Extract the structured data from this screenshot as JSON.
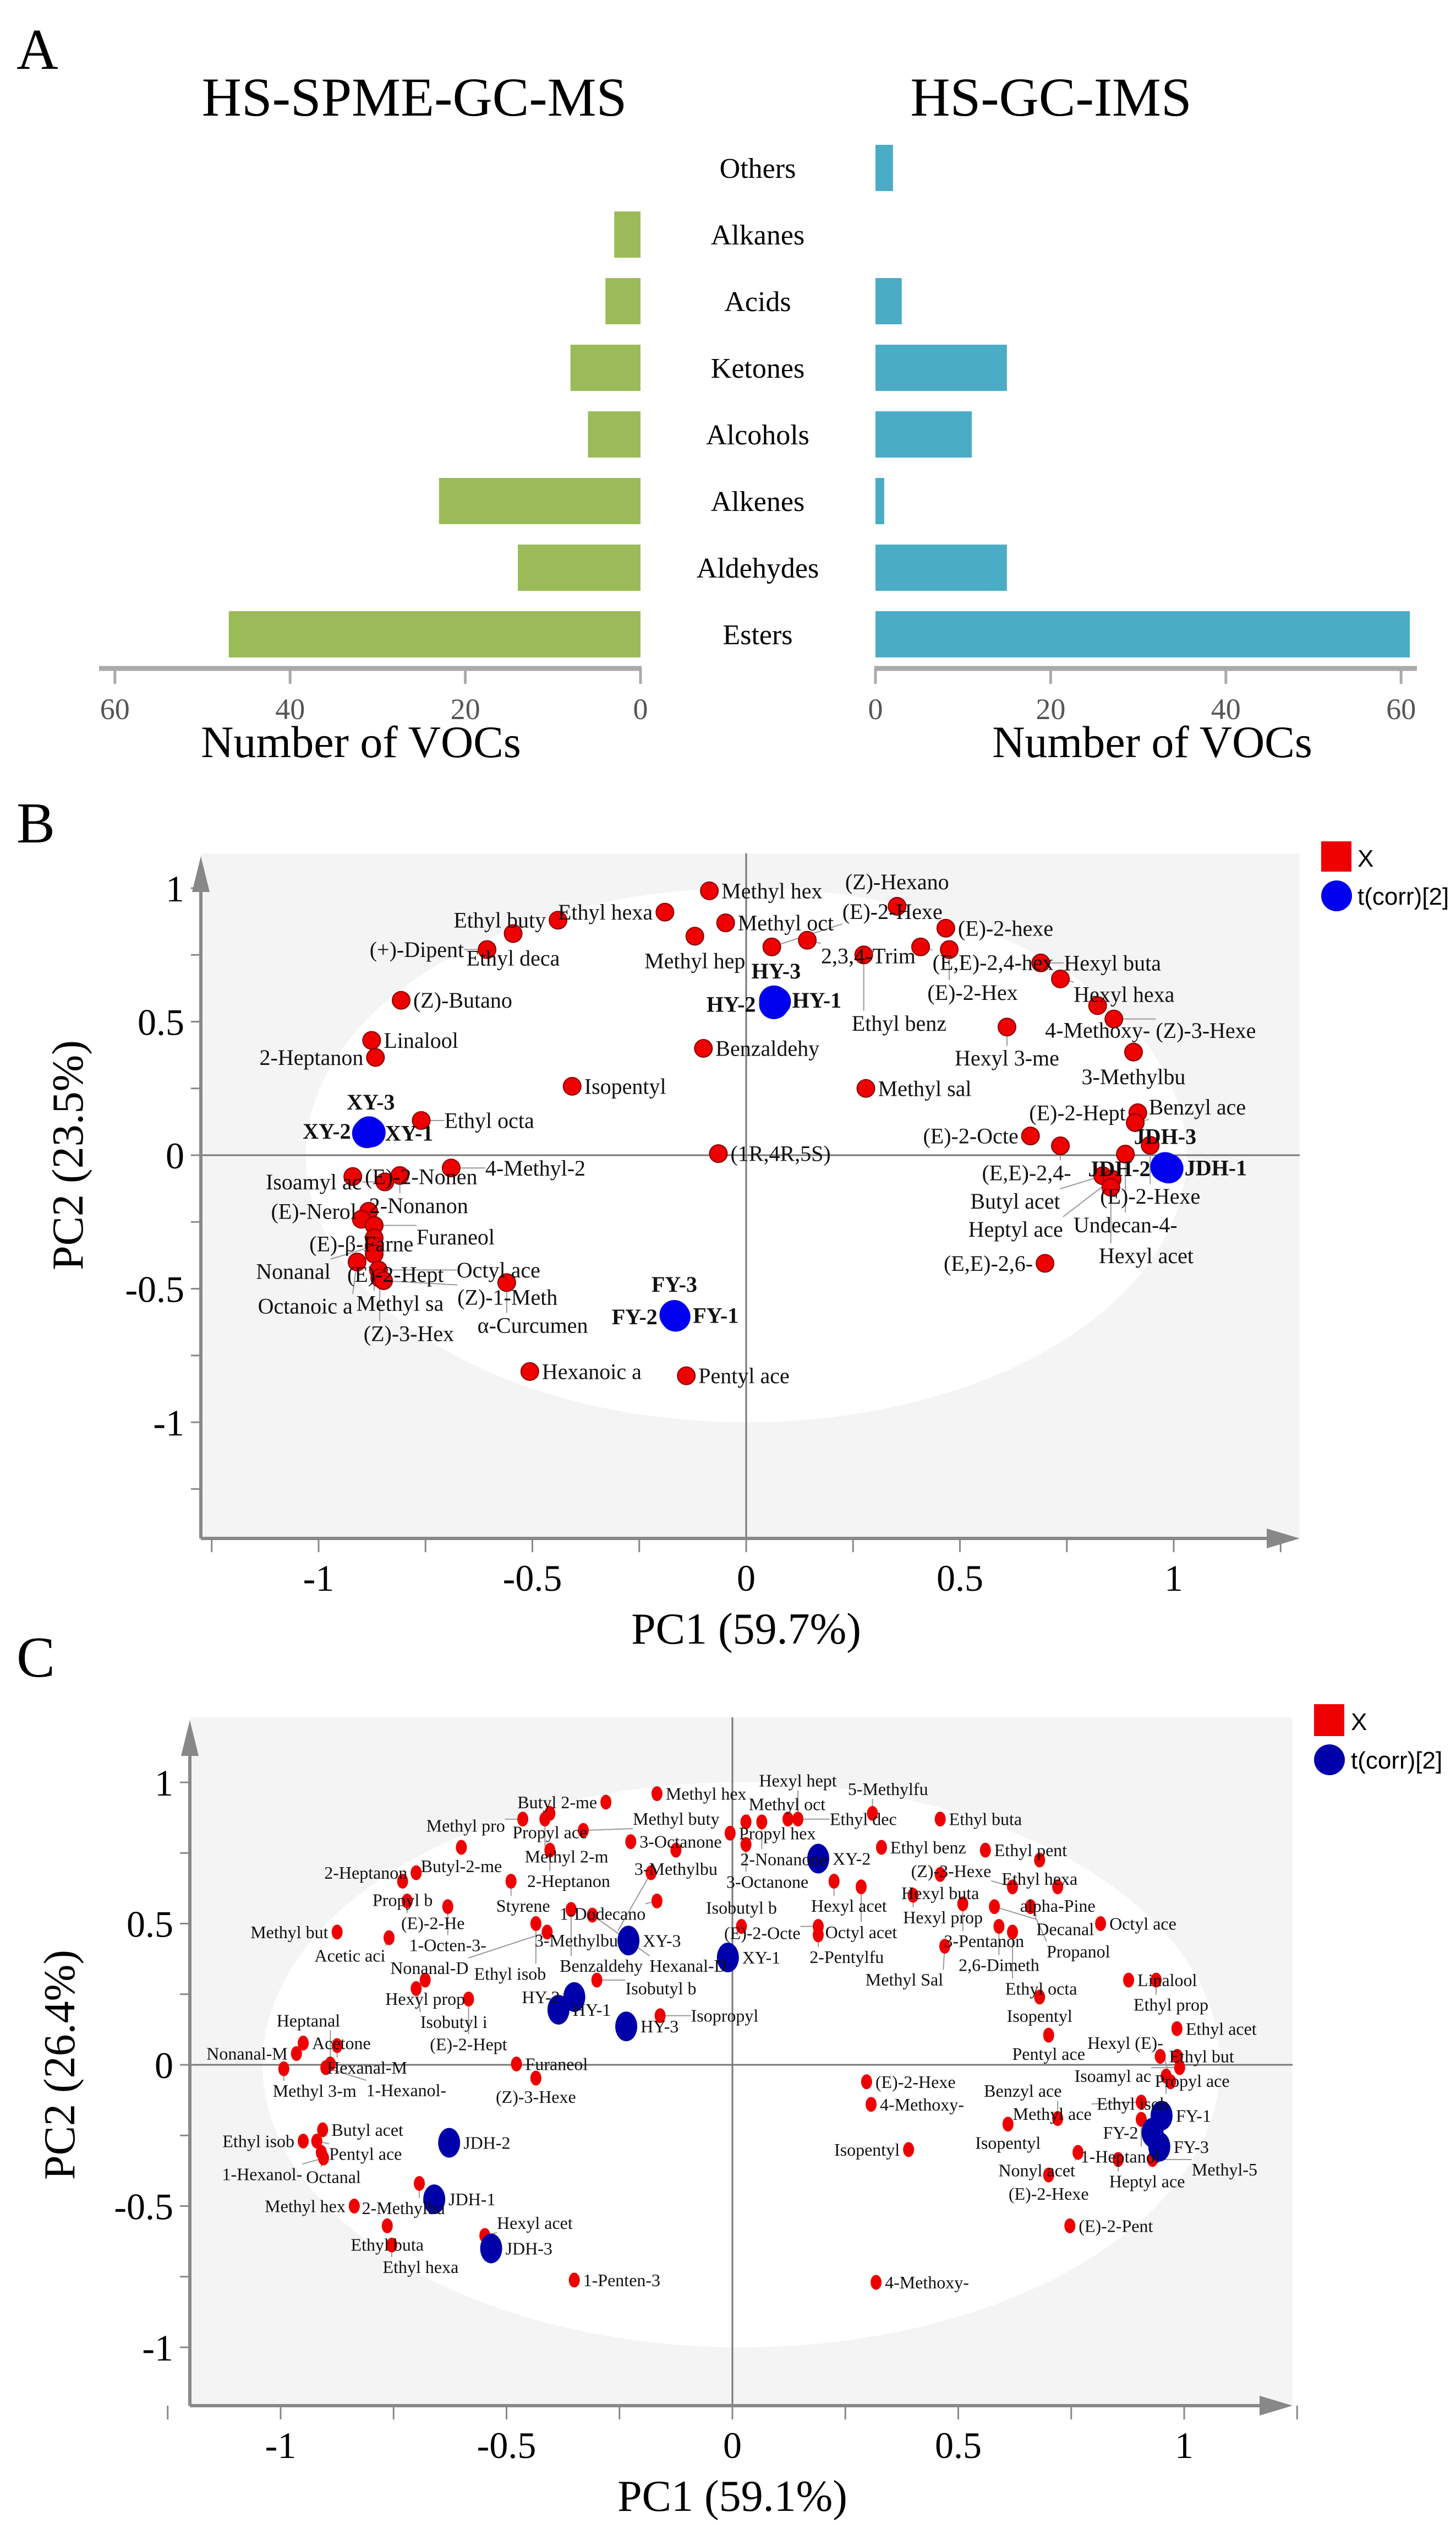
{
  "panel_letters": {
    "a": "A",
    "b": "B",
    "c": "C"
  },
  "chart_data": [
    {
      "type": "bar",
      "orientation": "horizontal-mirrored",
      "categories": [
        "Others",
        "Alkanes",
        "Acids",
        "Ketones",
        "Alcohols",
        "Alkenes",
        "Aldehydes",
        "Esters"
      ],
      "series": [
        {
          "name": "HS-SPME-GC-MS",
          "color": "#9bbb59",
          "values": [
            0,
            3,
            4,
            8,
            6,
            23,
            14,
            47
          ]
        },
        {
          "name": "HS-GC-IMS",
          "color": "#4bacc6",
          "values": [
            2,
            0,
            3,
            15,
            11,
            1,
            15,
            61
          ]
        }
      ],
      "xlabel": "Number of VOCs",
      "xlim": [
        0,
        60
      ],
      "xticks": [
        0,
        20,
        40,
        60
      ]
    },
    {
      "type": "scatter",
      "xlabel": "PC1 (59.7%)",
      "ylabel": "PC2 (23.5%)",
      "xlim": [
        -1.25,
        1.25
      ],
      "ylim": [
        -1.25,
        1.1
      ],
      "xticks": [
        "-1",
        "-0.5",
        "0",
        "0.5",
        "1"
      ],
      "yticks": [
        "1",
        "0.5",
        "0",
        "-0.5",
        "-1"
      ],
      "legend": {
        "position": "top-right",
        "entries": [
          {
            "label": "X",
            "color": "#ee0000",
            "shape": "square"
          },
          {
            "label": "t(corr)[2]",
            "color": "#0000ee",
            "shape": "circle"
          }
        ]
      },
      "variables": [
        [
          "Methyl hex",
          -0.086,
          0.99
        ],
        [
          "Ethyl hexa",
          -0.19,
          0.91
        ],
        [
          "Methyl oct",
          -0.048,
          0.87
        ],
        [
          "Ethyl buty",
          -0.44,
          0.88
        ],
        [
          "Ethyl deca",
          -0.545,
          0.83
        ],
        [
          "(+)-Dipent",
          -0.606,
          0.77
        ],
        [
          "Methyl hep",
          -0.12,
          0.82
        ],
        [
          "2,3,4-Trim",
          0.143,
          0.805
        ],
        [
          "(E)-2-Hexe",
          0.06,
          0.78
        ],
        [
          "(Z)-Hexano",
          0.353,
          0.932
        ],
        [
          "(E)-2-hexe",
          0.467,
          0.85
        ],
        [
          "(E,E)-2,4-hex",
          0.408,
          0.78
        ],
        [
          "(E)-2-Hex",
          0.475,
          0.77
        ],
        [
          "Ethyl benz",
          0.275,
          0.75
        ],
        [
          "Hexyl buta",
          0.689,
          0.72
        ],
        [
          "Hexyl hexa",
          0.735,
          0.66
        ],
        [
          "4-Methoxy-",
          0.822,
          0.56
        ],
        [
          "(Z)-3-Hexe",
          0.86,
          0.51
        ],
        [
          "Hexyl 3-me",
          0.61,
          0.48
        ],
        [
          "3-Methylbu",
          0.906,
          0.386
        ],
        [
          "(Z)-Butano",
          -0.807,
          0.58
        ],
        [
          "Linalool",
          -0.876,
          0.43
        ],
        [
          "2-Heptanon",
          -0.867,
          0.366
        ],
        [
          "Benzaldehy",
          -0.1,
          0.4
        ],
        [
          "Isopentyl",
          -0.407,
          0.258
        ],
        [
          "Methyl sal",
          0.28,
          0.25
        ],
        [
          "Ethyl octa",
          -0.76,
          0.13
        ],
        [
          "(1R,4R,5S)",
          -0.065,
          0.006
        ],
        [
          "(E)-2-Nonen",
          -0.92,
          -0.08
        ],
        [
          "2-Nonanon",
          -0.81,
          -0.076
        ],
        [
          "Isoamyl ac",
          -0.845,
          -0.1
        ],
        [
          "4-Methyl-2",
          -0.69,
          -0.048
        ],
        [
          "(E)-Nerol",
          -0.883,
          -0.21
        ],
        [
          "(E)-β-Farne",
          -0.9,
          -0.24
        ],
        [
          "Furaneol",
          -0.87,
          -0.263
        ],
        [
          "(E)-2-Hept",
          -0.87,
          -0.31
        ],
        [
          "Nonanal",
          -0.87,
          -0.34
        ],
        [
          "Methyl sa",
          -0.87,
          -0.37
        ],
        [
          "Octanoic a",
          -0.91,
          -0.4
        ],
        [
          "Octyl ace",
          -0.86,
          -0.43
        ],
        [
          "(Z)-3-Hex",
          -0.857,
          -0.46
        ],
        [
          "(Z)-1-Meth",
          -0.848,
          -0.47
        ],
        [
          "α-Curcumen",
          -0.56,
          -0.477
        ],
        [
          "Hexanoic a",
          -0.506,
          -0.81
        ],
        [
          "Pentyl ace",
          -0.14,
          -0.826
        ],
        [
          "(E)-2-Hept",
          0.916,
          0.159
        ],
        [
          "Benzyl ace",
          0.91,
          0.122
        ],
        [
          "(E)-2-Octe",
          0.665,
          0.072
        ],
        [
          "(E,E)-2,4-",
          0.735,
          0.035
        ],
        [
          "(E)-2-Hexe",
          0.945,
          0.037
        ],
        [
          "Undecan-4-",
          0.887,
          0.004
        ],
        [
          "Butyl acet",
          0.834,
          -0.077
        ],
        [
          "Heptyl ace",
          0.856,
          -0.09
        ],
        [
          "Hexyl acet",
          0.853,
          -0.12
        ],
        [
          "(E,E)-2,6-",
          0.699,
          -0.405
        ]
      ],
      "samples": [
        [
          "HY-1",
          0.065,
          0.58
        ],
        [
          "HY-2",
          0.065,
          0.565
        ],
        [
          "HY-3",
          0.07,
          0.575
        ],
        [
          "XY-1",
          -0.887,
          0.082
        ],
        [
          "XY-2",
          -0.882,
          0.09
        ],
        [
          "XY-3",
          -0.878,
          0.085
        ],
        [
          "FY-1",
          -0.167,
          -0.6
        ],
        [
          "FY-2",
          -0.165,
          -0.605
        ],
        [
          "FY-3",
          -0.168,
          -0.598
        ],
        [
          "JDH-1",
          0.983,
          -0.047
        ],
        [
          "JDH-2",
          0.988,
          -0.05
        ],
        [
          "JDH-3",
          0.98,
          -0.044
        ]
      ]
    },
    {
      "type": "scatter",
      "xlabel": "PC1 (59.1%)",
      "ylabel": "PC2 (26.4%)",
      "xlim": [
        -1.2,
        1.25
      ],
      "ylim": [
        -1.2,
        1.2
      ],
      "xticks": [
        "-1",
        "-0.5",
        "0",
        "0.5",
        "1"
      ],
      "yticks": [
        "1",
        "0.5",
        "0",
        "-0.5",
        "-1"
      ],
      "legend": {
        "position": "top-right",
        "entries": [
          {
            "label": "X",
            "color": "#ee0000",
            "shape": "square"
          },
          {
            "label": "t(corr)[2]",
            "color": "#0000aa",
            "shape": "circle"
          }
        ]
      },
      "variables": [
        [
          "Methyl hex",
          -0.167,
          0.96
        ],
        [
          "Butyl 2-me",
          -0.28,
          0.93
        ],
        [
          "Propyl ace",
          -0.404,
          0.89
        ],
        [
          "Methyl pro",
          -0.464,
          0.87
        ],
        [
          "Methyl 2-m",
          -0.415,
          0.87
        ],
        [
          "3-Octanone",
          -0.225,
          0.79
        ],
        [
          "Methyl buty",
          -0.33,
          0.83
        ],
        [
          "Butyl-2-me",
          -0.6,
          0.77
        ],
        [
          "2-Heptanon",
          -0.404,
          0.76
        ],
        [
          "3-Methylbu",
          -0.125,
          0.76
        ],
        [
          "Propyl hex",
          -0.005,
          0.82
        ],
        [
          "Methyl oct",
          0.03,
          0.86
        ],
        [
          "2-Nonanone",
          0.065,
          0.86
        ],
        [
          "Ethyl dec",
          0.123,
          0.87
        ],
        [
          "Hexyl hept",
          0.145,
          0.87
        ],
        [
          "3-Octanone",
          0.03,
          0.78
        ],
        [
          "5-Methylfu",
          0.31,
          0.89
        ],
        [
          "Ethyl buta",
          0.46,
          0.87
        ],
        [
          "Ethyl benz",
          0.33,
          0.77
        ],
        [
          "Ethyl pent",
          0.56,
          0.76
        ],
        [
          "Ethyl hexa",
          0.68,
          0.725
        ],
        [
          "Hexyl buta",
          0.46,
          0.674
        ],
        [
          "alpha-Pine",
          0.72,
          0.63
        ],
        [
          "(Z)-3-Hexe",
          0.62,
          0.63
        ],
        [
          "Hexyl prop",
          0.4,
          0.6
        ],
        [
          "3-Pentanon",
          0.51,
          0.57
        ],
        [
          "Decanal",
          0.58,
          0.56
        ],
        [
          "Propanol",
          0.66,
          0.56
        ],
        [
          "Hexyl acet",
          0.225,
          0.65
        ],
        [
          "Octyl acet",
          0.285,
          0.63
        ],
        [
          "Octyl ace",
          0.815,
          0.5
        ],
        [
          "2,6-Dimeth",
          0.59,
          0.49
        ],
        [
          "Ethyl octa",
          0.62,
          0.47
        ],
        [
          "(E)-2-Octe",
          0.19,
          0.49
        ],
        [
          "2-Pentylfu",
          0.19,
          0.46
        ],
        [
          "Isobutyl b",
          0.02,
          0.49
        ],
        [
          "1-Dodecano",
          -0.167,
          0.58
        ],
        [
          "3-Methylbu",
          -0.18,
          0.68
        ],
        [
          "Styrene",
          -0.49,
          0.65
        ],
        [
          "2-Heptanon",
          -0.7,
          0.68
        ],
        [
          "Propyl b",
          -0.73,
          0.65
        ],
        [
          "(E)-2-He",
          -0.72,
          0.58
        ],
        [
          "1-Octen-3-",
          -0.63,
          0.56
        ],
        [
          "Benzaldehy",
          -0.357,
          0.55
        ],
        [
          "Hexanal-D",
          -0.31,
          0.53
        ],
        [
          "Ethyl isob",
          -0.435,
          0.5
        ],
        [
          "Nonanal-D",
          -0.41,
          0.47
        ],
        [
          "Methyl but",
          -0.875,
          0.47
        ],
        [
          "Acetic aci",
          -0.76,
          0.45
        ],
        [
          "Isobutyl b",
          -0.3,
          0.3
        ],
        [
          "Hexyl prop",
          -0.68,
          0.3
        ],
        [
          "Isobutyl i",
          -0.7,
          0.27
        ],
        [
          "(E)-2-Hept",
          -0.584,
          0.233
        ],
        [
          "Isopropyl",
          -0.16,
          0.174
        ],
        [
          "Methyl Sal",
          0.47,
          0.42
        ],
        [
          "Linalool",
          0.877,
          0.3
        ],
        [
          "Ethyl prop",
          0.938,
          0.3
        ],
        [
          "Isopentyl",
          0.68,
          0.24
        ],
        [
          "Ethyl acet",
          0.984,
          0.128
        ],
        [
          "Pentyl ace",
          0.7,
          0.105
        ],
        [
          "Ethyl but",
          0.947,
          0.03
        ],
        [
          "Propyl ace",
          0.985,
          0.03
        ],
        [
          "Isoamyl ac",
          0.99,
          -0.01
        ],
        [
          "Ethyl isob",
          0.96,
          -0.04
        ],
        [
          "Hexyl (E)-",
          0.97,
          -0.06
        ],
        [
          "Acetone",
          -0.95,
          0.077
        ],
        [
          "Nonanal-M",
          -0.965,
          0.04
        ],
        [
          "Hexanal-M",
          -0.875,
          0.068
        ],
        [
          "Methyl 3-m",
          -0.993,
          -0.014
        ],
        [
          "Heptanal",
          -0.89,
          0.003
        ],
        [
          "1-Hexanol-",
          -0.9,
          -0.01
        ],
        [
          "Furaneol",
          -0.478,
          0.003
        ],
        [
          "(Z)-3-Hexe",
          -0.435,
          -0.047
        ],
        [
          "Butyl acet",
          -0.907,
          -0.23
        ],
        [
          "Ethyl isob",
          -0.95,
          -0.27
        ],
        [
          "Pentyl ace",
          -0.92,
          -0.27
        ],
        [
          "Octanal",
          -0.91,
          -0.31
        ],
        [
          "1-Hexanol-",
          -0.905,
          -0.33
        ],
        [
          "2-Methylbu",
          -0.693,
          -0.42
        ],
        [
          "Methyl hex",
          -0.837,
          -0.5
        ],
        [
          "Ethyl buta",
          -0.764,
          -0.57
        ],
        [
          "Ethyl hexa",
          -0.754,
          -0.638
        ],
        [
          "Hexyl acet",
          -0.548,
          -0.604
        ],
        [
          "1-Penten-3",
          -0.35,
          -0.762
        ],
        [
          "(E)-2-Hexe",
          0.297,
          -0.06
        ],
        [
          "4-Methoxy-",
          0.307,
          -0.14
        ],
        [
          "Methyl ace",
          0.905,
          -0.132
        ],
        [
          "1-Heptanol",
          0.905,
          -0.193
        ],
        [
          "Isopentyl",
          0.61,
          -0.21
        ],
        [
          "Benzyl ace",
          0.72,
          -0.19
        ],
        [
          "Nonyl acet",
          0.765,
          -0.31
        ],
        [
          "Heptyl ace",
          0.854,
          -0.335
        ],
        [
          "Methyl-5",
          0.93,
          -0.335
        ],
        [
          "(E)-2-Hexe",
          0.7,
          -0.39
        ],
        [
          "Isopentyl",
          0.39,
          -0.3
        ],
        [
          "(E)-2-Pent",
          0.747,
          -0.57
        ],
        [
          "4-Methoxy-",
          0.318,
          -0.77
        ]
      ],
      "samples": [
        [
          "XY-1",
          -0.01,
          0.38
        ],
        [
          "XY-2",
          0.19,
          0.73
        ],
        [
          "XY-3",
          -0.23,
          0.44
        ],
        [
          "HY-1",
          -0.385,
          0.195
        ],
        [
          "HY-2",
          -0.35,
          0.24
        ],
        [
          "HY-3",
          -0.235,
          0.136
        ],
        [
          "JDH-1",
          -0.66,
          -0.476
        ],
        [
          "JDH-2",
          -0.627,
          -0.276
        ],
        [
          "JDH-3",
          -0.534,
          -0.65
        ],
        [
          "FY-1",
          0.95,
          -0.18
        ],
        [
          "FY-2",
          0.93,
          -0.24
        ],
        [
          "FY-3",
          0.945,
          -0.29
        ]
      ]
    }
  ]
}
